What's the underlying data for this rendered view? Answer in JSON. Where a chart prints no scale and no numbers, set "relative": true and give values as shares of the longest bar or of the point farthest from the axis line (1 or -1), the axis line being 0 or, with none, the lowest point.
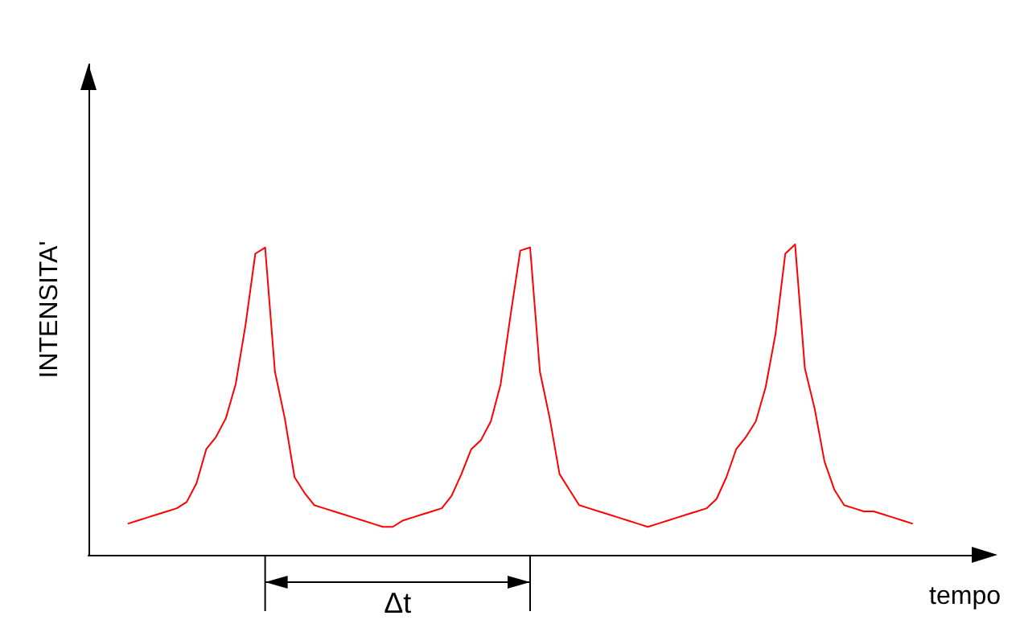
{
  "chart_data": {
    "type": "line",
    "relative": true,
    "xlabel": "tempo",
    "ylabel": "INTENSITA'",
    "annotations": [
      "Δt"
    ],
    "grid": false,
    "marker": "none",
    "line_style": "solid",
    "categories": [
      null,
      null,
      null,
      null,
      null,
      null,
      null,
      null,
      null,
      null,
      null,
      null,
      null,
      null,
      null,
      null,
      null,
      null,
      null,
      null,
      null,
      null,
      null,
      null,
      null,
      null,
      null,
      null,
      null,
      null,
      null,
      null,
      null,
      null,
      null,
      null,
      null,
      null,
      null,
      null,
      null,
      null,
      null,
      null,
      null,
      null,
      null,
      null,
      null,
      null,
      null,
      null,
      null,
      null,
      null,
      null,
      null,
      null,
      null,
      null,
      null,
      null,
      null,
      null,
      null,
      null,
      null,
      null,
      null,
      null,
      null,
      null,
      null,
      null,
      null,
      null,
      null,
      null,
      null,
      null,
      null,
      null,
      null,
      null,
      null,
      null,
      null,
      null,
      null,
      null,
      null
    ],
    "series": [
      {
        "color": "#ff0000",
        "values": [
          null,
          null,
          null,
          null,
          0.1,
          0.11,
          0.12,
          0.13,
          0.14,
          0.15,
          0.17,
          0.23,
          0.34,
          0.38,
          0.44,
          0.55,
          0.74,
          0.97,
          0.99,
          0.59,
          0.44,
          0.25,
          0.2,
          0.16,
          0.15,
          0.14,
          0.13,
          0.12,
          0.11,
          0.1,
          0.09,
          0.09,
          0.11,
          0.12,
          0.13,
          0.14,
          0.15,
          0.19,
          0.26,
          0.34,
          0.37,
          0.43,
          0.55,
          0.77,
          0.98,
          0.99,
          0.59,
          0.44,
          0.26,
          0.21,
          0.16,
          0.15,
          0.14,
          0.13,
          0.12,
          0.11,
          0.1,
          0.09,
          0.1,
          0.11,
          0.12,
          0.13,
          0.14,
          0.15,
          0.18,
          0.25,
          0.34,
          0.38,
          0.43,
          0.54,
          0.71,
          0.97,
          1,
          0.6,
          0.47,
          0.3,
          0.21,
          0.16,
          0.15,
          0.14,
          0.14,
          0.13,
          0.12,
          0.11,
          0.1,
          null,
          null,
          null,
          null,
          null,
          null
        ]
      }
    ]
  }
}
